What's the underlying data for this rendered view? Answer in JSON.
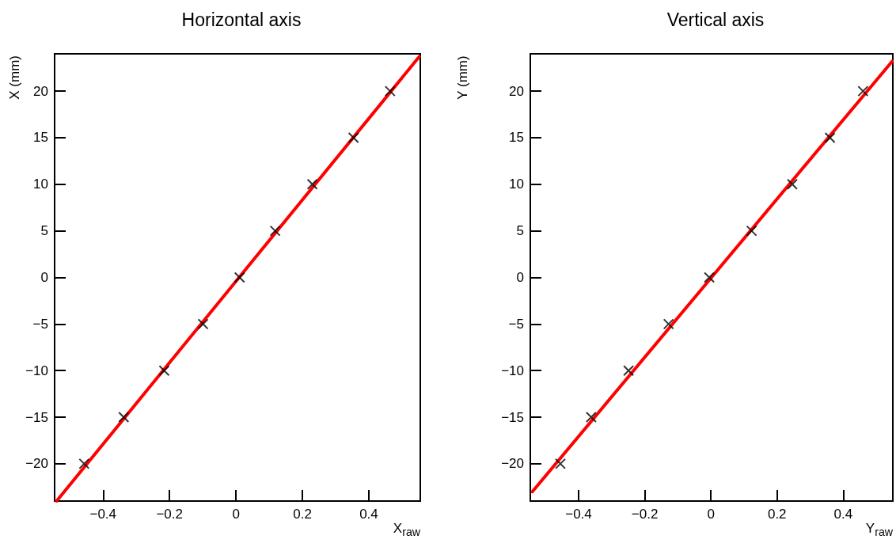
{
  "chart_data": [
    {
      "type": "scatter",
      "title": "Horizontal axis",
      "xlabel": "X$_{raw}$",
      "ylabel": "X (mm)",
      "xlim": [
        -0.546,
        0.555
      ],
      "ylim": [
        -24,
        24
      ],
      "xticks": [
        -0.4,
        -0.2,
        0,
        0.2,
        0.4
      ],
      "yticks": [
        -20,
        -15,
        -10,
        -5,
        0,
        5,
        10,
        15,
        20
      ],
      "grid": false,
      "series": [
        {
          "color": "#000000",
          "marker": "cross",
          "x": [
            -0.457,
            -0.338,
            -0.216,
            -0.099,
            0.011,
            0.118,
            0.23,
            0.354,
            0.464
          ],
          "values": [
            -20,
            -15,
            -10,
            -5,
            0,
            5,
            10,
            15,
            20
          ]
        },
        {
          "type": "line",
          "color": "#ff0000",
          "x": [
            -0.54,
            0.552
          ],
          "values": [
            -24,
            23.7
          ]
        }
      ]
    },
    {
      "type": "scatter",
      "title": "Vertical axis",
      "xlabel": "Y$_{raw}$",
      "ylabel": "Y (mm)",
      "xlim": [
        -0.546,
        0.55
      ],
      "ylim": [
        -24,
        24
      ],
      "xticks": [
        -0.4,
        -0.2,
        0,
        0.2,
        0.4
      ],
      "yticks": [
        -20,
        -15,
        -10,
        -5,
        0,
        5,
        10,
        15,
        20
      ],
      "grid": false,
      "series": [
        {
          "color": "#000000",
          "marker": "cross",
          "x": [
            -0.455,
            -0.362,
            -0.249,
            -0.128,
            -0.005,
            0.123,
            0.246,
            0.36,
            0.46
          ],
          "values": [
            -20,
            -15,
            -10,
            -5,
            0,
            5,
            10,
            15,
            20
          ]
        },
        {
          "type": "line",
          "color": "#ff0000",
          "x": [
            -0.54,
            0.548
          ],
          "values": [
            -23,
            23.2
          ]
        }
      ]
    }
  ]
}
